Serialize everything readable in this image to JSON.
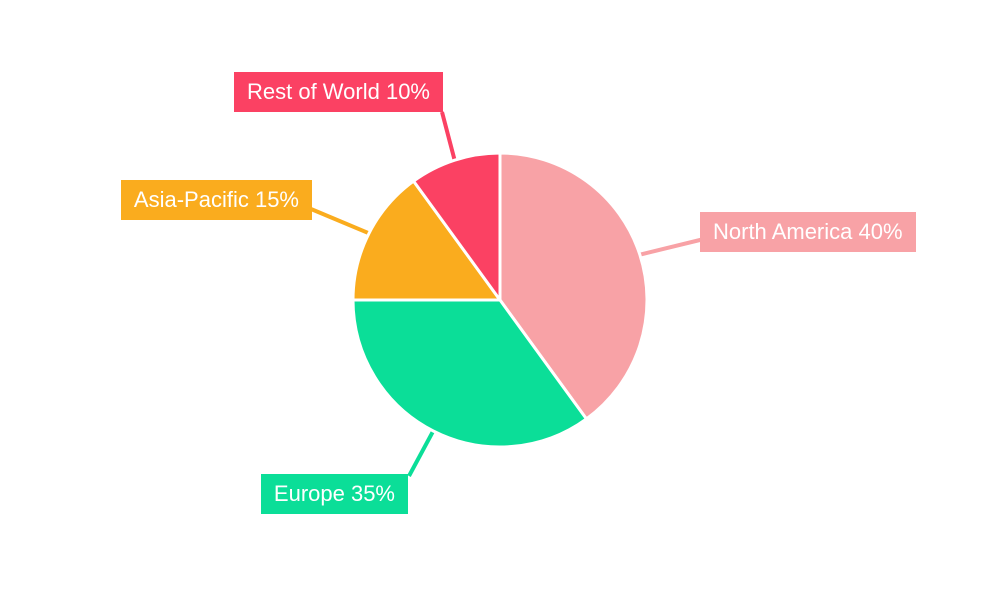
{
  "canvas": {
    "background": "#ffffff"
  },
  "chart_data": {
    "type": "pie",
    "start_angle_deg": 0,
    "direction": "clockwise",
    "separator_color": "#ffffff",
    "label_text_color": "#ffffff",
    "label_style": "callout-boxes-with-leader-lines",
    "slices": [
      {
        "name": "North America",
        "value": 40,
        "unit": "%",
        "color": "#F8A2A6",
        "label": "North America 40%"
      },
      {
        "name": "Europe",
        "value": 35,
        "unit": "%",
        "color": "#0BDE98",
        "label": "Europe 35%"
      },
      {
        "name": "Asia-Pacific",
        "value": 15,
        "unit": "%",
        "color": "#FAAC1E",
        "label": "Asia-Pacific 15%"
      },
      {
        "name": "Rest of World",
        "value": 10,
        "unit": "%",
        "color": "#FB4163",
        "label": "Rest of World 10%"
      }
    ]
  }
}
